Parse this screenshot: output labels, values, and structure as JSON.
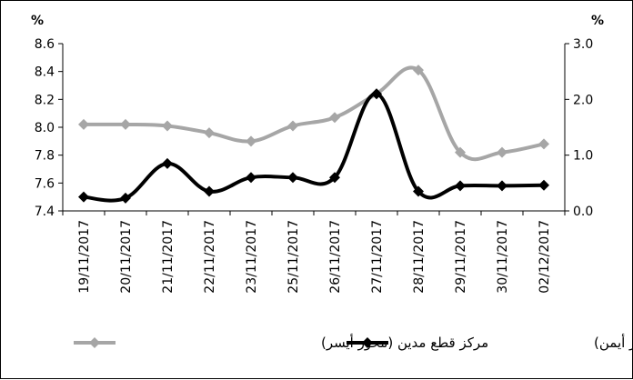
{
  "chart_data": {
    "type": "line",
    "categories": [
      "19/11/2017",
      "20/11/2017",
      "21/11/2017",
      "22/11/2017",
      "23/11/2017",
      "25/11/2017",
      "26/11/2017",
      "27/11/2017",
      "28/11/2017",
      "29/11/2017",
      "30/11/2017",
      "02/12/2017"
    ],
    "left_axis": {
      "unit": "%",
      "ylim": [
        7.4,
        8.6
      ],
      "ticks": [
        "8.6",
        "8.4",
        "8.2",
        "8.0",
        "7.8",
        "7.6",
        "7.4"
      ],
      "tick_values": [
        8.6,
        8.4,
        8.2,
        8.0,
        7.8,
        7.6,
        7.4
      ]
    },
    "right_axis": {
      "unit": "%",
      "ylim": [
        0.0,
        3.0
      ],
      "ticks": [
        "3.0",
        "2.0",
        "1.0",
        "0.0"
      ],
      "tick_values": [
        3.0,
        2.0,
        1.0,
        0.0
      ]
    },
    "series": [
      {
        "name": "مركز قطع مدين (محور أيسر)",
        "axis": "left",
        "color": "#a6a6a6",
        "marker": "diamond",
        "values": [
          8.02,
          8.02,
          8.01,
          7.96,
          7.9,
          8.01,
          8.07,
          8.24,
          8.41,
          7.82,
          7.82,
          7.88
        ]
      },
      {
        "name": "مركز قطع دائن (محور أيمن)",
        "axis": "right",
        "color": "#000000",
        "marker": "diamond",
        "values": [
          0.25,
          0.23,
          0.85,
          0.35,
          0.6,
          0.6,
          0.6,
          2.1,
          0.35,
          0.45,
          0.45,
          0.46
        ]
      }
    ],
    "legend_position": "bottom",
    "grid": false
  }
}
